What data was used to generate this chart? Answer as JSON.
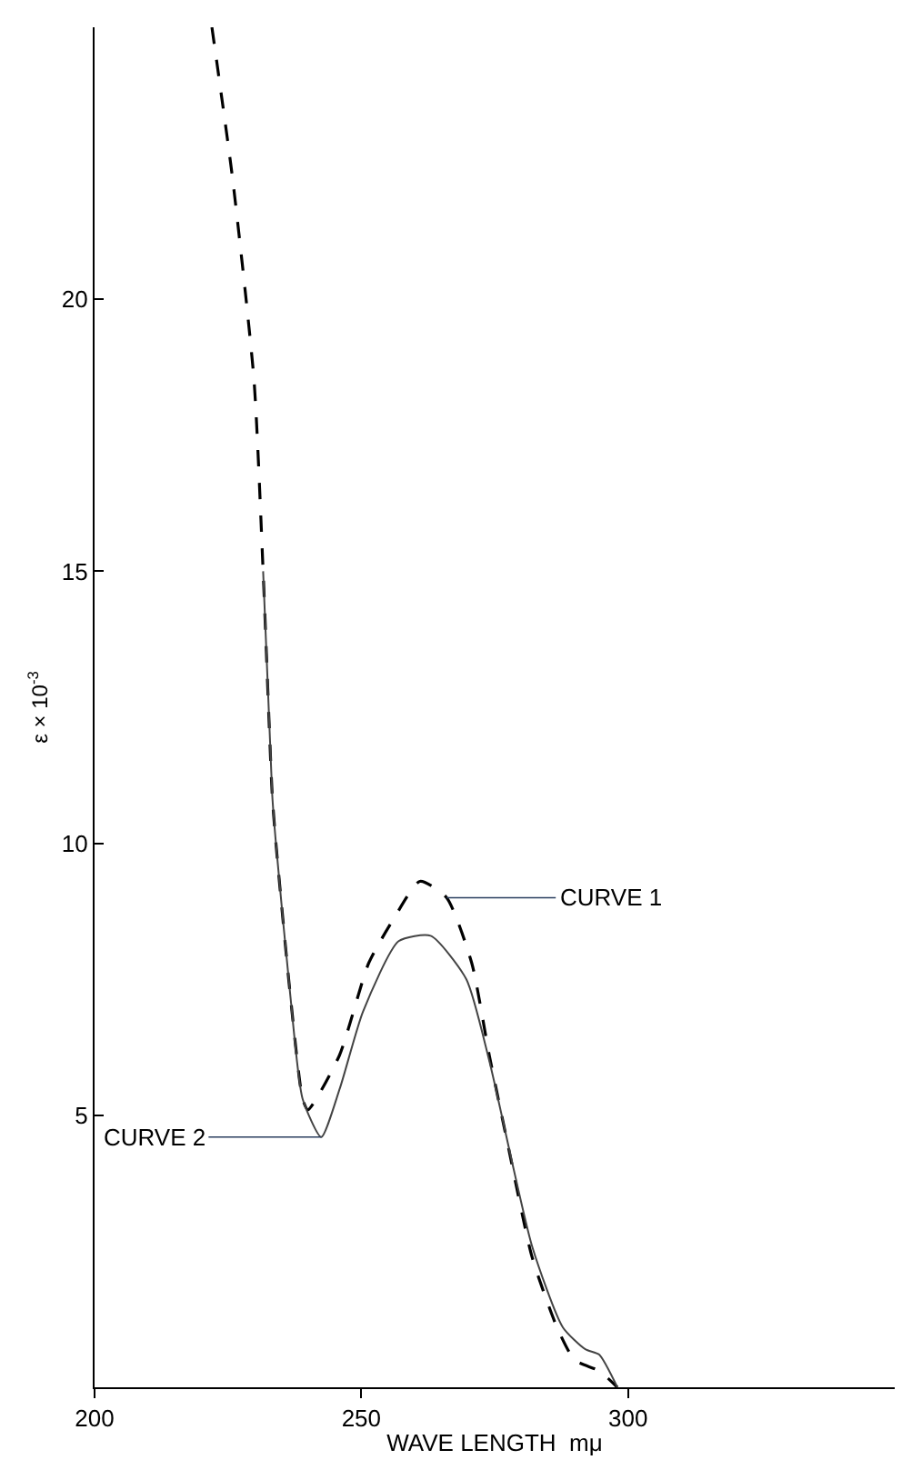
{
  "chart_data": {
    "type": "line",
    "xlabel": "WAVE LENGTH  mμ",
    "ylabel": "ε × 10$^{-3}$",
    "xlim": [
      200,
      350
    ],
    "xticks": [
      200,
      250,
      300
    ],
    "ylim": [
      0,
      25
    ],
    "yticks": [
      5,
      10,
      15,
      20
    ],
    "marker": "none",
    "series": [
      {
        "color": "#000000",
        "line_style": "dashed",
        "x": [
          222,
          225.9,
          229.9,
          231.6,
          233.3,
          234,
          236.7,
          239,
          240,
          245.9,
          251.4,
          256,
          261,
          266,
          270.7,
          274,
          277.6,
          282,
          286.7,
          290,
          294.6,
          298
        ],
        "values": [
          25.0,
          22.2,
          18.5,
          15.0,
          10.9,
          10.0,
          7.2,
          5.3,
          5.1,
          6.1,
          7.8,
          8.6,
          9.3,
          9.0,
          7.8,
          6.1,
          4.4,
          2.4,
          1.1,
          0.5,
          0.3,
          0
        ]
      },
      {
        "color": "#444444",
        "line_style": "solid",
        "x": [
          231.6,
          233.3,
          234,
          236.7,
          239,
          242.5,
          246,
          250.3,
          257,
          263,
          269.7,
          274,
          282,
          287.8,
          292,
          294.6,
          298
        ],
        "values": [
          15.0,
          10.9,
          10.0,
          7.2,
          5.3,
          4.6,
          5.5,
          6.9,
          8.2,
          8.3,
          7.5,
          6.0,
          2.6,
          1.1,
          0.7,
          0.6,
          0
        ]
      }
    ],
    "annotations": [
      {
        "text": "CURVE 1",
        "x": 266,
        "y": 9.0
      },
      {
        "text": "CURVE 2",
        "x": 242.5,
        "y": 4.6
      }
    ]
  }
}
